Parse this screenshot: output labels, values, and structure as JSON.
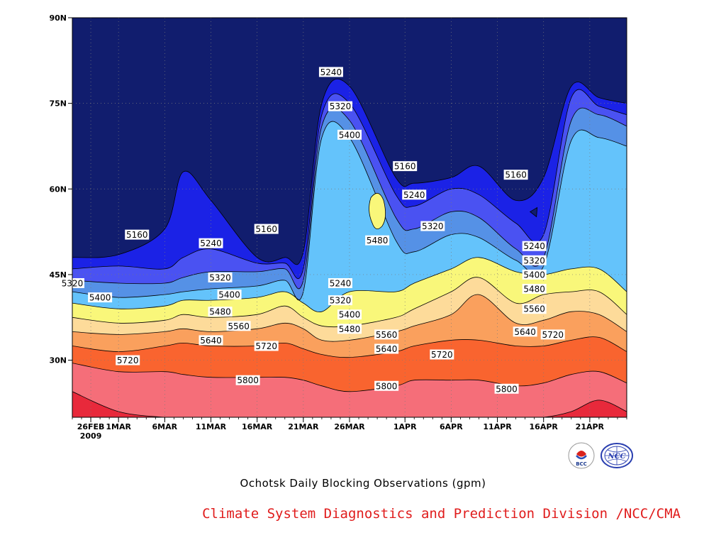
{
  "chart_data": {
    "type": "heatmap",
    "title": "Ochotsk Daily Blocking Observations (gpm)",
    "x_axis": {
      "type": "date",
      "range": [
        "2009-02-24",
        "2009-04-25"
      ],
      "ticks": [
        {
          "date": "2009-02-26",
          "label": "26FEB",
          "sublabel": "2009"
        },
        {
          "date": "2009-03-01",
          "label": "1MAR"
        },
        {
          "date": "2009-03-06",
          "label": "6MAR"
        },
        {
          "date": "2009-03-11",
          "label": "11MAR"
        },
        {
          "date": "2009-03-16",
          "label": "16MAR"
        },
        {
          "date": "2009-03-21",
          "label": "21MAR"
        },
        {
          "date": "2009-03-26",
          "label": "26MAR"
        },
        {
          "date": "2009-04-01",
          "label": "1APR"
        },
        {
          "date": "2009-04-06",
          "label": "6APR"
        },
        {
          "date": "2009-04-11",
          "label": "11APR"
        },
        {
          "date": "2009-04-16",
          "label": "16APR"
        },
        {
          "date": "2009-04-21",
          "label": "21APR"
        }
      ]
    },
    "y_axis": {
      "range": [
        20,
        90
      ],
      "ticks": [
        {
          "value": 30,
          "label": "30N"
        },
        {
          "value": 45,
          "label": "45N"
        },
        {
          "value": 60,
          "label": "60N"
        },
        {
          "value": 75,
          "label": "75N"
        },
        {
          "value": 90,
          "label": "90N"
        }
      ]
    },
    "grid": true,
    "levels": [
      5160,
      5240,
      5320,
      5400,
      5480,
      5560,
      5640,
      5720,
      5800,
      5880
    ],
    "colors": [
      "#111d6e",
      "#1b22e6",
      "#4a52f2",
      "#5591e6",
      "#64c3fb",
      "#f9f77a",
      "#fddb9a",
      "#faa05d",
      "#f9642f",
      "#f56e79",
      "#e8293b"
    ],
    "contour_latitudes": [
      {
        "date": "2009-02-24",
        "lat": [
          48,
          46,
          44,
          42,
          40,
          37.5,
          35,
          32.5,
          29.5,
          24.5
        ]
      },
      {
        "date": "2009-03-01",
        "lat": [
          48.5,
          46.5,
          43.5,
          41,
          39,
          36.5,
          34.5,
          31.5,
          28,
          21
        ]
      },
      {
        "date": "2009-03-06",
        "lat": [
          53,
          46,
          43.5,
          41.5,
          39.5,
          37,
          35,
          32.5,
          28,
          20
        ]
      },
      {
        "date": "2009-03-08",
        "lat": [
          63,
          48,
          44.5,
          42,
          40.5,
          38,
          35.5,
          33,
          27.5,
          20
        ]
      },
      {
        "date": "2009-03-11",
        "lat": [
          58,
          49.5,
          45.5,
          42.5,
          40.5,
          37.5,
          35,
          32.5,
          27,
          20
        ]
      },
      {
        "date": "2009-03-16",
        "lat": [
          48,
          47,
          45.5,
          43,
          41,
          38,
          35.5,
          32.5,
          27,
          20
        ]
      },
      {
        "date": "2009-03-19",
        "lat": [
          48,
          47,
          46,
          44,
          42,
          39.5,
          36.5,
          33,
          27,
          20
        ]
      },
      {
        "date": "2009-03-21",
        "lat": [
          49,
          46,
          44,
          42,
          40,
          37.5,
          35.5,
          32,
          26.5,
          20
        ]
      },
      {
        "date": "2009-03-23",
        "lat": [
          75,
          73,
          71,
          69,
          38.5,
          36,
          33.5,
          31,
          25.5,
          20
        ]
      },
      {
        "date": "2009-03-26",
        "lat": [
          78,
          75,
          72,
          69,
          42,
          36,
          33.5,
          30.5,
          24.5,
          20
        ]
      },
      {
        "date": "2009-03-31",
        "lat": [
          62,
          59,
          55,
          51,
          42,
          37.5,
          35,
          31.5,
          25.5,
          20
        ]
      },
      {
        "date": "2009-04-02",
        "lat": [
          61,
          57,
          53,
          49,
          43.5,
          39,
          36,
          32.5,
          26.5,
          20
        ]
      },
      {
        "date": "2009-04-06",
        "lat": [
          62,
          60,
          56,
          52,
          46,
          42,
          38,
          33.5,
          26.5,
          20
        ]
      },
      {
        "date": "2009-04-09",
        "lat": [
          64,
          59,
          55,
          51.5,
          48,
          44.5,
          41.5,
          33.5,
          26.5,
          20
        ]
      },
      {
        "date": "2009-04-13",
        "lat": [
          58,
          54,
          49.5,
          47.5,
          45.5,
          40,
          36.5,
          32.5,
          25.5,
          20
        ]
      },
      {
        "date": "2009-04-16",
        "lat": [
          62,
          52,
          48,
          46.5,
          45,
          41.5,
          37,
          32.5,
          26,
          20
        ]
      },
      {
        "date": "2009-04-19",
        "lat": [
          78,
          76,
          72,
          68.5,
          46,
          42,
          38.5,
          33.5,
          27.5,
          21
        ]
      },
      {
        "date": "2009-04-22",
        "lat": [
          76,
          74.5,
          73,
          69,
          46,
          42,
          38,
          34,
          28,
          23
        ]
      },
      {
        "date": "2009-04-25",
        "lat": [
          75,
          73,
          71,
          67.5,
          42,
          38,
          35,
          31.5,
          26,
          21
        ]
      }
    ],
    "contour_labels": [
      {
        "text": "5160",
        "date": "2009-03-03",
        "lat": 52
      },
      {
        "text": "5240",
        "date": "2009-03-11",
        "lat": 50.5
      },
      {
        "text": "5160",
        "date": "2009-03-17",
        "lat": 53
      },
      {
        "text": "5320",
        "date": "2009-02-24",
        "lat": 43.5
      },
      {
        "text": "5400",
        "date": "2009-02-27",
        "lat": 41
      },
      {
        "text": "5320",
        "date": "2009-03-12",
        "lat": 44.5
      },
      {
        "text": "5400",
        "date": "2009-03-13",
        "lat": 41.5
      },
      {
        "text": "5480",
        "date": "2009-03-12",
        "lat": 38.5
      },
      {
        "text": "5560",
        "date": "2009-03-14",
        "lat": 36
      },
      {
        "text": "5640",
        "date": "2009-03-11",
        "lat": 33.5
      },
      {
        "text": "5720",
        "date": "2009-03-02",
        "lat": 30
      },
      {
        "text": "5720",
        "date": "2009-03-17",
        "lat": 32.5
      },
      {
        "text": "5800",
        "date": "2009-03-15",
        "lat": 26.5
      },
      {
        "text": "5240",
        "date": "2009-03-24",
        "lat": 80.5
      },
      {
        "text": "5320",
        "date": "2009-03-25",
        "lat": 74.5
      },
      {
        "text": "5400",
        "date": "2009-03-26",
        "lat": 69.5
      },
      {
        "text": "5480",
        "date": "2009-03-29",
        "lat": 51
      },
      {
        "text": "5240",
        "date": "2009-03-25",
        "lat": 43.5
      },
      {
        "text": "5320",
        "date": "2009-03-25",
        "lat": 40.5
      },
      {
        "text": "5400",
        "date": "2009-03-26",
        "lat": 38
      },
      {
        "text": "5480",
        "date": "2009-03-26",
        "lat": 35.5
      },
      {
        "text": "5560",
        "date": "2009-03-30",
        "lat": 34.5
      },
      {
        "text": "5640",
        "date": "2009-03-30",
        "lat": 32
      },
      {
        "text": "5800",
        "date": "2009-03-30",
        "lat": 25.5
      },
      {
        "text": "5160",
        "date": "2009-04-01",
        "lat": 64
      },
      {
        "text": "5240",
        "date": "2009-04-02",
        "lat": 59
      },
      {
        "text": "5320",
        "date": "2009-04-04",
        "lat": 53.5
      },
      {
        "text": "5720",
        "date": "2009-04-05",
        "lat": 31
      },
      {
        "text": "5160",
        "date": "2009-04-13",
        "lat": 62.5
      },
      {
        "text": "5240",
        "date": "2009-04-15",
        "lat": 50
      },
      {
        "text": "5320",
        "date": "2009-04-15",
        "lat": 47.5
      },
      {
        "text": "5400",
        "date": "2009-04-15",
        "lat": 45
      },
      {
        "text": "5480",
        "date": "2009-04-15",
        "lat": 42.5
      },
      {
        "text": "5560",
        "date": "2009-04-15",
        "lat": 39
      },
      {
        "text": "5640",
        "date": "2009-04-14",
        "lat": 35
      },
      {
        "text": "5720",
        "date": "2009-04-17",
        "lat": 34.5
      },
      {
        "text": "5800",
        "date": "2009-04-12",
        "lat": 25
      }
    ],
    "features": [
      {
        "level": 5480,
        "date": "2009-03-29",
        "lat": 56
      },
      {
        "level": 5160,
        "date": "2009-04-15",
        "lat": 56
      }
    ]
  },
  "logos": [
    {
      "name": "bcc-logo",
      "text": "BCC"
    },
    {
      "name": "ncc-logo",
      "text": "NCC"
    }
  ],
  "footer": "Climate System Diagnostics and Prediction Division /NCC/CMA"
}
